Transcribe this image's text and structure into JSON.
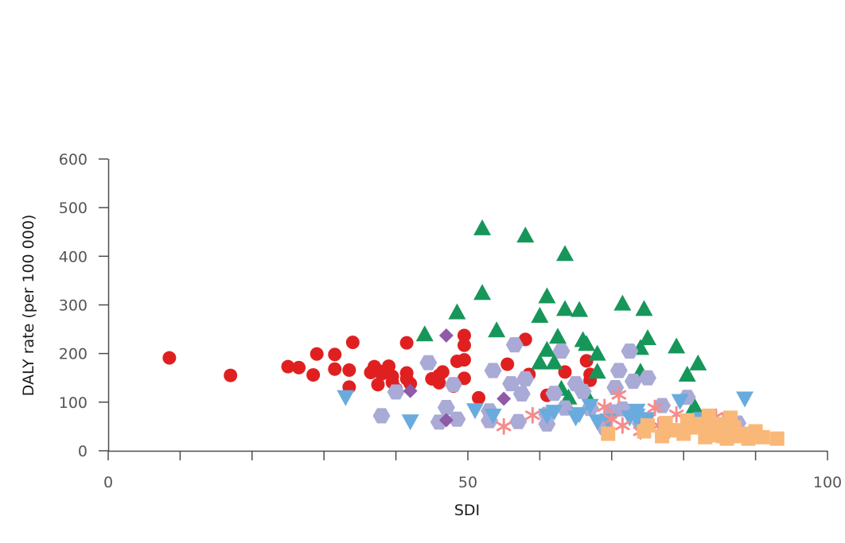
{
  "chart_data": {
    "type": "scatter",
    "title": "",
    "xlabel": "SDI",
    "ylabel": "DALY rate (per 100 000)",
    "xlim": [
      0,
      100
    ],
    "ylim": [
      0,
      600
    ],
    "x_ticks": [
      0,
      10,
      20,
      30,
      40,
      50,
      60,
      70,
      80,
      90,
      100
    ],
    "x_tick_labels": [
      {
        "value": 0,
        "label": "0"
      },
      {
        "value": 50,
        "label": "50"
      },
      {
        "value": 100,
        "label": "100"
      }
    ],
    "y_ticks": [
      0,
      100,
      200,
      300,
      400,
      500,
      600
    ],
    "y_tick_labels": [
      "0",
      "100",
      "200",
      "300",
      "400",
      "500",
      "600"
    ],
    "grid": false,
    "legend": "none",
    "series": [
      {
        "marker": "circle",
        "color": "#e02020",
        "points": [
          [
            8.5,
            191
          ],
          [
            17,
            155
          ],
          [
            25,
            173
          ],
          [
            26.5,
            171
          ],
          [
            28.5,
            156
          ],
          [
            29,
            199
          ],
          [
            31.5,
            168
          ],
          [
            31.5,
            198
          ],
          [
            33.5,
            166
          ],
          [
            33.5,
            131
          ],
          [
            34,
            223
          ],
          [
            36.5,
            161
          ],
          [
            37,
            173
          ],
          [
            37.5,
            165
          ],
          [
            37.5,
            136
          ],
          [
            38,
            158
          ],
          [
            39,
            174
          ],
          [
            39.5,
            153
          ],
          [
            39.5,
            141
          ],
          [
            40,
            127
          ],
          [
            41.5,
            222
          ],
          [
            41.5,
            160
          ],
          [
            41.5,
            148
          ],
          [
            42,
            138
          ],
          [
            45,
            148
          ],
          [
            46,
            155
          ],
          [
            46,
            140
          ],
          [
            46.5,
            162
          ],
          [
            48,
            133
          ],
          [
            48.5,
            184
          ],
          [
            49.5,
            237
          ],
          [
            49.5,
            217
          ],
          [
            49.5,
            187
          ],
          [
            49.5,
            149
          ],
          [
            51.5,
            109
          ],
          [
            55.5,
            178
          ],
          [
            58,
            229
          ],
          [
            58.5,
            157
          ],
          [
            61,
            114
          ],
          [
            63.5,
            162
          ],
          [
            66.5,
            185
          ],
          [
            67,
            145
          ],
          [
            67,
            157
          ]
        ]
      },
      {
        "marker": "triangle",
        "color": "#17965a",
        "points": [
          [
            44,
            240
          ],
          [
            48.5,
            285
          ],
          [
            52,
            458
          ],
          [
            52,
            325
          ],
          [
            54,
            248
          ],
          [
            58,
            443
          ],
          [
            60,
            182
          ],
          [
            60,
            278
          ],
          [
            61,
            208
          ],
          [
            61,
            318
          ],
          [
            62,
            182
          ],
          [
            62.5,
            235
          ],
          [
            63,
            128
          ],
          [
            63.5,
            292
          ],
          [
            63.5,
            405
          ],
          [
            64,
            110
          ],
          [
            65.5,
            290
          ],
          [
            66,
            228
          ],
          [
            66.5,
            220
          ],
          [
            67,
            102
          ],
          [
            68,
            200
          ],
          [
            68,
            163
          ],
          [
            71.5,
            303
          ],
          [
            74,
            212
          ],
          [
            74,
            163
          ],
          [
            74.5,
            292
          ],
          [
            75,
            232
          ],
          [
            79,
            215
          ],
          [
            80.5,
            157
          ],
          [
            81.5,
            92
          ],
          [
            82,
            180
          ]
        ]
      },
      {
        "marker": "hexagon",
        "color": "#aaaad6",
        "points": [
          [
            38,
            72
          ],
          [
            40,
            121
          ],
          [
            44.5,
            181
          ],
          [
            46,
            59
          ],
          [
            47,
            89
          ],
          [
            48,
            136
          ],
          [
            48.5,
            65
          ],
          [
            53,
            82
          ],
          [
            53,
            62
          ],
          [
            53.5,
            165
          ],
          [
            56,
            138
          ],
          [
            56.5,
            218
          ],
          [
            57,
            60
          ],
          [
            57.5,
            117
          ],
          [
            58,
            148
          ],
          [
            61,
            55
          ],
          [
            61,
            75
          ],
          [
            62,
            118
          ],
          [
            63,
            205
          ],
          [
            63.5,
            88
          ],
          [
            65,
            138
          ],
          [
            66,
            122
          ],
          [
            67,
            87
          ],
          [
            69,
            48
          ],
          [
            70,
            80
          ],
          [
            70.5,
            130
          ],
          [
            71,
            165
          ],
          [
            71.5,
            86
          ],
          [
            72.5,
            205
          ],
          [
            73,
            143
          ],
          [
            74,
            56
          ],
          [
            75,
            150
          ],
          [
            77,
            93
          ],
          [
            80.5,
            110
          ],
          [
            81,
            58
          ],
          [
            83,
            50
          ],
          [
            86.5,
            63
          ],
          [
            87.5,
            57
          ]
        ]
      },
      {
        "marker": "diamond",
        "color": "#8e5ba8",
        "points": [
          [
            42,
            123
          ],
          [
            47,
            237
          ],
          [
            47,
            63
          ],
          [
            55,
            107
          ]
        ]
      },
      {
        "marker": "triangle-down",
        "color": "#6aabdd",
        "points": [
          [
            33,
            110
          ],
          [
            42,
            60
          ],
          [
            51,
            83
          ],
          [
            53.5,
            72
          ],
          [
            61,
            72
          ],
          [
            62,
            80
          ],
          [
            65,
            68
          ],
          [
            65.5,
            75
          ],
          [
            67,
            92
          ],
          [
            68,
            60
          ],
          [
            69.5,
            62
          ],
          [
            72.5,
            68
          ],
          [
            73.5,
            82
          ],
          [
            73.5,
            72
          ],
          [
            74,
            52
          ],
          [
            75,
            65
          ],
          [
            78,
            42
          ],
          [
            79.5,
            102
          ],
          [
            82.5,
            65
          ],
          [
            84.5,
            47
          ],
          [
            88.5,
            107
          ]
        ]
      },
      {
        "marker": "asterisk",
        "color": "#f58c8c",
        "points": [
          [
            55,
            50
          ],
          [
            59,
            73
          ],
          [
            69,
            90
          ],
          [
            70,
            65
          ],
          [
            71,
            115
          ],
          [
            71.5,
            52
          ],
          [
            74,
            40
          ],
          [
            76,
            88
          ],
          [
            76.5,
            52
          ],
          [
            77.5,
            40
          ],
          [
            79,
            75
          ],
          [
            80,
            47
          ],
          [
            83,
            45
          ],
          [
            84.5,
            70
          ],
          [
            85.5,
            60
          ]
        ]
      },
      {
        "marker": "square",
        "color": "#f9b878",
        "points": [
          [
            69.5,
            35
          ],
          [
            74.5,
            40
          ],
          [
            75,
            52
          ],
          [
            77,
            30
          ],
          [
            77.5,
            57
          ],
          [
            79,
            42
          ],
          [
            80,
            35
          ],
          [
            80.5,
            62
          ],
          [
            81,
            48
          ],
          [
            82.5,
            55
          ],
          [
            83,
            28
          ],
          [
            83.5,
            72
          ],
          [
            84,
            32
          ],
          [
            84.5,
            45
          ],
          [
            85,
            55
          ],
          [
            85.5,
            30
          ],
          [
            86,
            25
          ],
          [
            86.5,
            68
          ],
          [
            87,
            48
          ],
          [
            87.5,
            30
          ],
          [
            88,
            35
          ],
          [
            89,
            25
          ],
          [
            90,
            40
          ],
          [
            91,
            28
          ],
          [
            93,
            25
          ]
        ]
      }
    ]
  }
}
